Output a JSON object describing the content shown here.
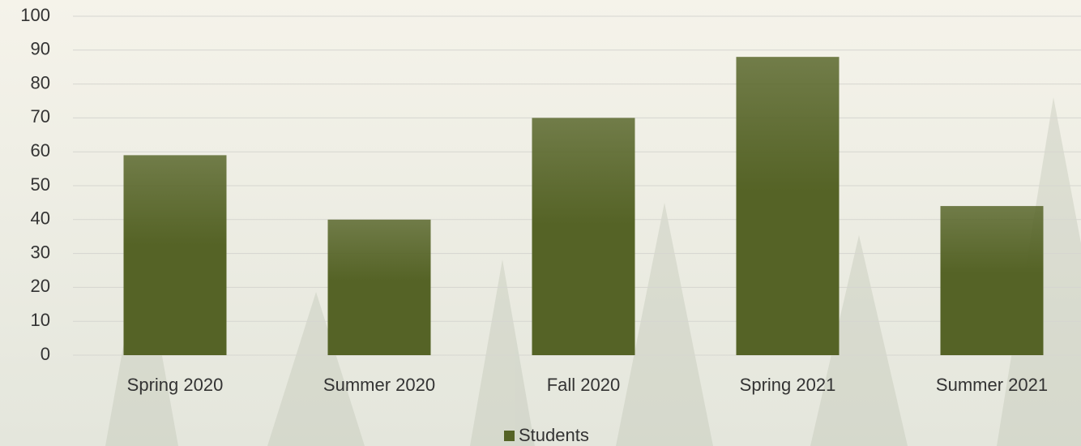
{
  "chart_data": {
    "type": "bar",
    "categories": [
      "Spring 2020",
      "Summer 2020",
      "Fall 2020",
      "Spring 2021",
      "Summer 2021"
    ],
    "series": [
      {
        "name": "Students",
        "color": "#556326",
        "values": [
          59,
          40,
          70,
          88,
          44
        ]
      }
    ],
    "ylim": [
      0,
      100
    ],
    "yticks": [
      0,
      10,
      20,
      30,
      40,
      50,
      60,
      70,
      80,
      90,
      100
    ],
    "grid": true,
    "legend": "bottom"
  }
}
